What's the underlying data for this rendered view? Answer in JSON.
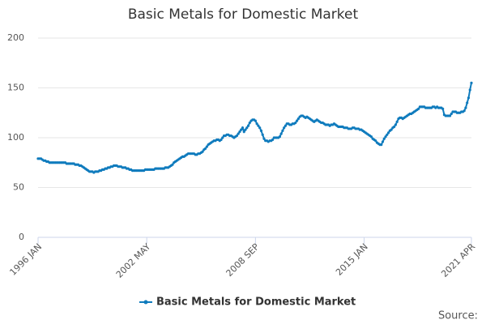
{
  "chart_data": {
    "type": "line",
    "title": "Basic Metals for Domestic Market",
    "source": "Source:",
    "categories": [
      "1996 JAN",
      null,
      null,
      null,
      null,
      null,
      null,
      null,
      null,
      null,
      null,
      null,
      null,
      null,
      null,
      null,
      null,
      null,
      null,
      null,
      null,
      null,
      null,
      null,
      null,
      null,
      null,
      null,
      null,
      null,
      null,
      null,
      null,
      null,
      null,
      null,
      null,
      null,
      null,
      null,
      null,
      null,
      null,
      null,
      null,
      null,
      null,
      null,
      null,
      null,
      null,
      null,
      null,
      null,
      null,
      null,
      null,
      null,
      null,
      null,
      null,
      null,
      null,
      null,
      null,
      null,
      null,
      null,
      null,
      null,
      null,
      null,
      null,
      null,
      null,
      null,
      "2002 MAY",
      null,
      null,
      null,
      null,
      null,
      null,
      null,
      null,
      null,
      null,
      null,
      null,
      null,
      null,
      null,
      null,
      null,
      null,
      null,
      null,
      null,
      null,
      null,
      null,
      null,
      null,
      null,
      null,
      null,
      null,
      null,
      null,
      null,
      null,
      null,
      null,
      null,
      null,
      null,
      null,
      null,
      null,
      null,
      null,
      null,
      null,
      null,
      null,
      null,
      null,
      null,
      null,
      null,
      null,
      null,
      null,
      null,
      null,
      null,
      null,
      null,
      null,
      null,
      null,
      null,
      null,
      null,
      null,
      null,
      null,
      null,
      null,
      null,
      null,
      null,
      "2008 SEP",
      null,
      null,
      null,
      null,
      null,
      null,
      null,
      null,
      null,
      null,
      null,
      null,
      null,
      null,
      null,
      null,
      null,
      null,
      null,
      null,
      null,
      null,
      null,
      null,
      null,
      null,
      null,
      null,
      null,
      null,
      null,
      null,
      null,
      null,
      null,
      null,
      null,
      null,
      null,
      null,
      null,
      null,
      null,
      null,
      null,
      null,
      null,
      null,
      null,
      null,
      null,
      null,
      null,
      null,
      null,
      null,
      null,
      null,
      null,
      null,
      null,
      null,
      null,
      null,
      null,
      null,
      null,
      null,
      null,
      null,
      null,
      null,
      null,
      null,
      null,
      "2015 JAN",
      null,
      null,
      null,
      null,
      null,
      null,
      null,
      null,
      null,
      null,
      null,
      null,
      null,
      null,
      null,
      null,
      null,
      null,
      null,
      null,
      null,
      null,
      null,
      null,
      null,
      null,
      null,
      null,
      null,
      null,
      null,
      null,
      null,
      null,
      null,
      null,
      null,
      null,
      null,
      null,
      null,
      null,
      null,
      null,
      null,
      null,
      null,
      null,
      null,
      null,
      null,
      null,
      null,
      null,
      null,
      null,
      null,
      null,
      null,
      null,
      null,
      null,
      null,
      null,
      null,
      null,
      null,
      null,
      null,
      null,
      null,
      null,
      null,
      null,
      "2021 APR"
    ],
    "series": [
      {
        "name": "Basic Metals for Domestic Market",
        "color": "#0f7bbd",
        "values": [
          79,
          79,
          79,
          78,
          77,
          77,
          76,
          76,
          75,
          75,
          75,
          75,
          75,
          75,
          75,
          75,
          75,
          75,
          75,
          75,
          74,
          74,
          74,
          74,
          74,
          74,
          73,
          73,
          73,
          72,
          72,
          71,
          70,
          69,
          68,
          67,
          66,
          66,
          66,
          65,
          66,
          66,
          66,
          67,
          67,
          68,
          68,
          69,
          69,
          70,
          70,
          71,
          71,
          72,
          72,
          72,
          71,
          71,
          71,
          70,
          70,
          70,
          69,
          69,
          68,
          68,
          67,
          67,
          67,
          67,
          67,
          67,
          67,
          67,
          67,
          68,
          68,
          68,
          68,
          68,
          68,
          68,
          69,
          69,
          69,
          69,
          69,
          69,
          69,
          70,
          70,
          70,
          71,
          72,
          73,
          75,
          76,
          77,
          78,
          79,
          80,
          81,
          81,
          82,
          83,
          84,
          84,
          84,
          84,
          84,
          83,
          83,
          84,
          84,
          85,
          86,
          88,
          89,
          91,
          93,
          94,
          95,
          96,
          97,
          97,
          98,
          98,
          97,
          98,
          100,
          102,
          102,
          103,
          103,
          102,
          102,
          101,
          100,
          101,
          102,
          104,
          106,
          108,
          110,
          106,
          108,
          110,
          112,
          115,
          117,
          118,
          118,
          117,
          114,
          112,
          110,
          107,
          103,
          99,
          97,
          97,
          96,
          97,
          97,
          98,
          100,
          100,
          100,
          100,
          101,
          104,
          107,
          110,
          112,
          114,
          114,
          113,
          113,
          114,
          114,
          115,
          117,
          119,
          121,
          122,
          122,
          121,
          120,
          121,
          120,
          119,
          118,
          117,
          116,
          117,
          118,
          117,
          116,
          115,
          115,
          114,
          113,
          113,
          113,
          112,
          113,
          113,
          114,
          113,
          112,
          111,
          111,
          111,
          111,
          110,
          110,
          110,
          109,
          109,
          109,
          110,
          110,
          109,
          109,
          109,
          108,
          108,
          107,
          106,
          105,
          104,
          103,
          102,
          101,
          99,
          98,
          97,
          95,
          94,
          93,
          93,
          96,
          99,
          101,
          103,
          105,
          107,
          108,
          110,
          111,
          113,
          116,
          119,
          120,
          120,
          119,
          120,
          121,
          122,
          123,
          124,
          124,
          125,
          126,
          127,
          128,
          129,
          131,
          131,
          131,
          131,
          130,
          130,
          130,
          130,
          130,
          131,
          131,
          130,
          131,
          130,
          130,
          130,
          129,
          123,
          122,
          122,
          122,
          122,
          124,
          126,
          126,
          126,
          125,
          125,
          125,
          126,
          126,
          127,
          130,
          135,
          140,
          148,
          155
        ]
      }
    ],
    "ylim": [
      0,
      200
    ],
    "yticks": [
      0,
      50,
      100,
      150,
      200
    ],
    "grid": true
  }
}
